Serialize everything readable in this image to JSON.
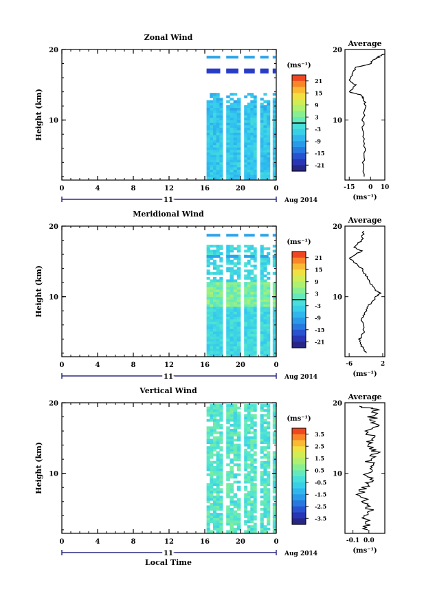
{
  "chart_data": [
    {
      "type": "heatmap",
      "title": "Zonal Wind",
      "ylabel": "Height (km)",
      "ylim": [
        1.5,
        20
      ],
      "y_ticks": [
        "10",
        "20"
      ],
      "xlim": [
        0,
        24
      ],
      "x_ticks": [
        "0",
        "4",
        "8",
        "12",
        "16",
        "20",
        "0"
      ],
      "date_label": "11",
      "month_label": "Aug 2014",
      "data_start_hour": 16.2,
      "colorbar": {
        "unit": "(ms⁻¹)",
        "ticks": [
          "21",
          "15",
          "9",
          "3",
          "-3",
          "-9",
          "-15",
          "-21"
        ],
        "range": [
          -24,
          24
        ],
        "zero_line": true
      },
      "average": {
        "title": "Average",
        "xlabel": "(ms⁻¹)",
        "xlim": [
          -18,
          10
        ],
        "x_ticks": [
          "-15",
          "0",
          "10"
        ],
        "ylim": [
          1.5,
          20
        ],
        "y_ticks": [
          "10",
          "20"
        ],
        "profile": [
          [
            -4.5,
            2
          ],
          [
            -5,
            4
          ],
          [
            -4,
            6
          ],
          [
            -5,
            8
          ],
          [
            -5.5,
            10
          ],
          [
            -3.5,
            12
          ],
          [
            -5,
            13
          ],
          [
            -6,
            13.5
          ],
          [
            -15,
            14
          ],
          [
            -10,
            15
          ],
          [
            -15,
            15.5
          ],
          [
            -13,
            16.5
          ],
          [
            -10,
            17.5
          ],
          [
            0,
            18
          ],
          [
            2,
            18.5
          ],
          [
            6,
            19
          ],
          [
            10,
            19.4
          ]
        ]
      }
    },
    {
      "type": "heatmap",
      "title": "Meridional Wind",
      "ylabel": "Height (km)",
      "ylim": [
        1.5,
        20
      ],
      "y_ticks": [
        "10",
        "20"
      ],
      "xlim": [
        0,
        24
      ],
      "x_ticks": [
        "0",
        "4",
        "8",
        "12",
        "16",
        "20",
        "0"
      ],
      "date_label": "11",
      "month_label": "Aug 2014",
      "data_start_hour": 16.2,
      "colorbar": {
        "unit": "(ms⁻¹)",
        "ticks": [
          "21",
          "15",
          "9",
          "3",
          "-3",
          "-9",
          "-15",
          "-21"
        ],
        "range": [
          -24,
          24
        ],
        "zero_line": true
      },
      "average": {
        "title": "Average",
        "xlabel": "(ms⁻¹)",
        "xlim": [
          -7,
          2.5
        ],
        "x_ticks": [
          "-6",
          "2"
        ],
        "ylim": [
          1.5,
          20
        ],
        "y_ticks": [
          "10",
          "20"
        ],
        "profile": [
          [
            -2,
            2
          ],
          [
            -3,
            3
          ],
          [
            -3.5,
            4
          ],
          [
            -2.5,
            5
          ],
          [
            -3,
            7
          ],
          [
            -2,
            8
          ],
          [
            -1,
            9
          ],
          [
            0.5,
            10
          ],
          [
            1.5,
            10.5
          ],
          [
            0,
            11
          ],
          [
            -1,
            12
          ],
          [
            -2,
            13
          ],
          [
            -3,
            14
          ],
          [
            -5,
            15
          ],
          [
            -6,
            15.5
          ],
          [
            -3,
            16.5
          ],
          [
            -5,
            17
          ],
          [
            -3,
            18
          ],
          [
            -2.5,
            19.3
          ]
        ]
      }
    },
    {
      "type": "heatmap",
      "title": "Vertical Wind",
      "ylabel": "Height (km)",
      "ylim": [
        1.5,
        20
      ],
      "y_ticks": [
        "10",
        "20"
      ],
      "xlim": [
        0,
        24
      ],
      "x_ticks": [
        "0",
        "4",
        "8",
        "12",
        "16",
        "20",
        "0"
      ],
      "date_label": "11",
      "month_label": "Aug 2014",
      "data_start_hour": 16.2,
      "colorbar": {
        "unit": "(ms⁻¹)",
        "ticks": [
          "3.5",
          "2.5",
          "1.5",
          "0.5",
          "-0.5",
          "-1.5",
          "-2.5",
          "-3.5"
        ],
        "range": [
          -4,
          4
        ],
        "zero_line": false
      },
      "average": {
        "title": "Average",
        "xlabel": "(ms⁻¹)",
        "xlim": [
          -0.15,
          0.1
        ],
        "x_ticks": [
          "-0.1",
          "0.0"
        ],
        "ylim": [
          1.5,
          20
        ],
        "y_ticks": [
          "10",
          "20"
        ],
        "profile": [
          [
            -0.02,
            2
          ],
          [
            0,
            3
          ],
          [
            -0.03,
            4
          ],
          [
            0.01,
            5
          ],
          [
            -0.02,
            6
          ],
          [
            -0.05,
            7
          ],
          [
            -0.03,
            8
          ],
          [
            0.0,
            9
          ],
          [
            -0.01,
            10
          ],
          [
            0.02,
            11
          ],
          [
            0.0,
            12
          ],
          [
            0.04,
            13
          ],
          [
            0.0,
            14
          ],
          [
            0.03,
            15
          ],
          [
            -0.01,
            16
          ],
          [
            0.05,
            17
          ],
          [
            0.02,
            18
          ],
          [
            0.06,
            19
          ],
          [
            -0.06,
            19.5
          ]
        ]
      }
    }
  ],
  "footer": {
    "xlabel": "Local Time"
  }
}
